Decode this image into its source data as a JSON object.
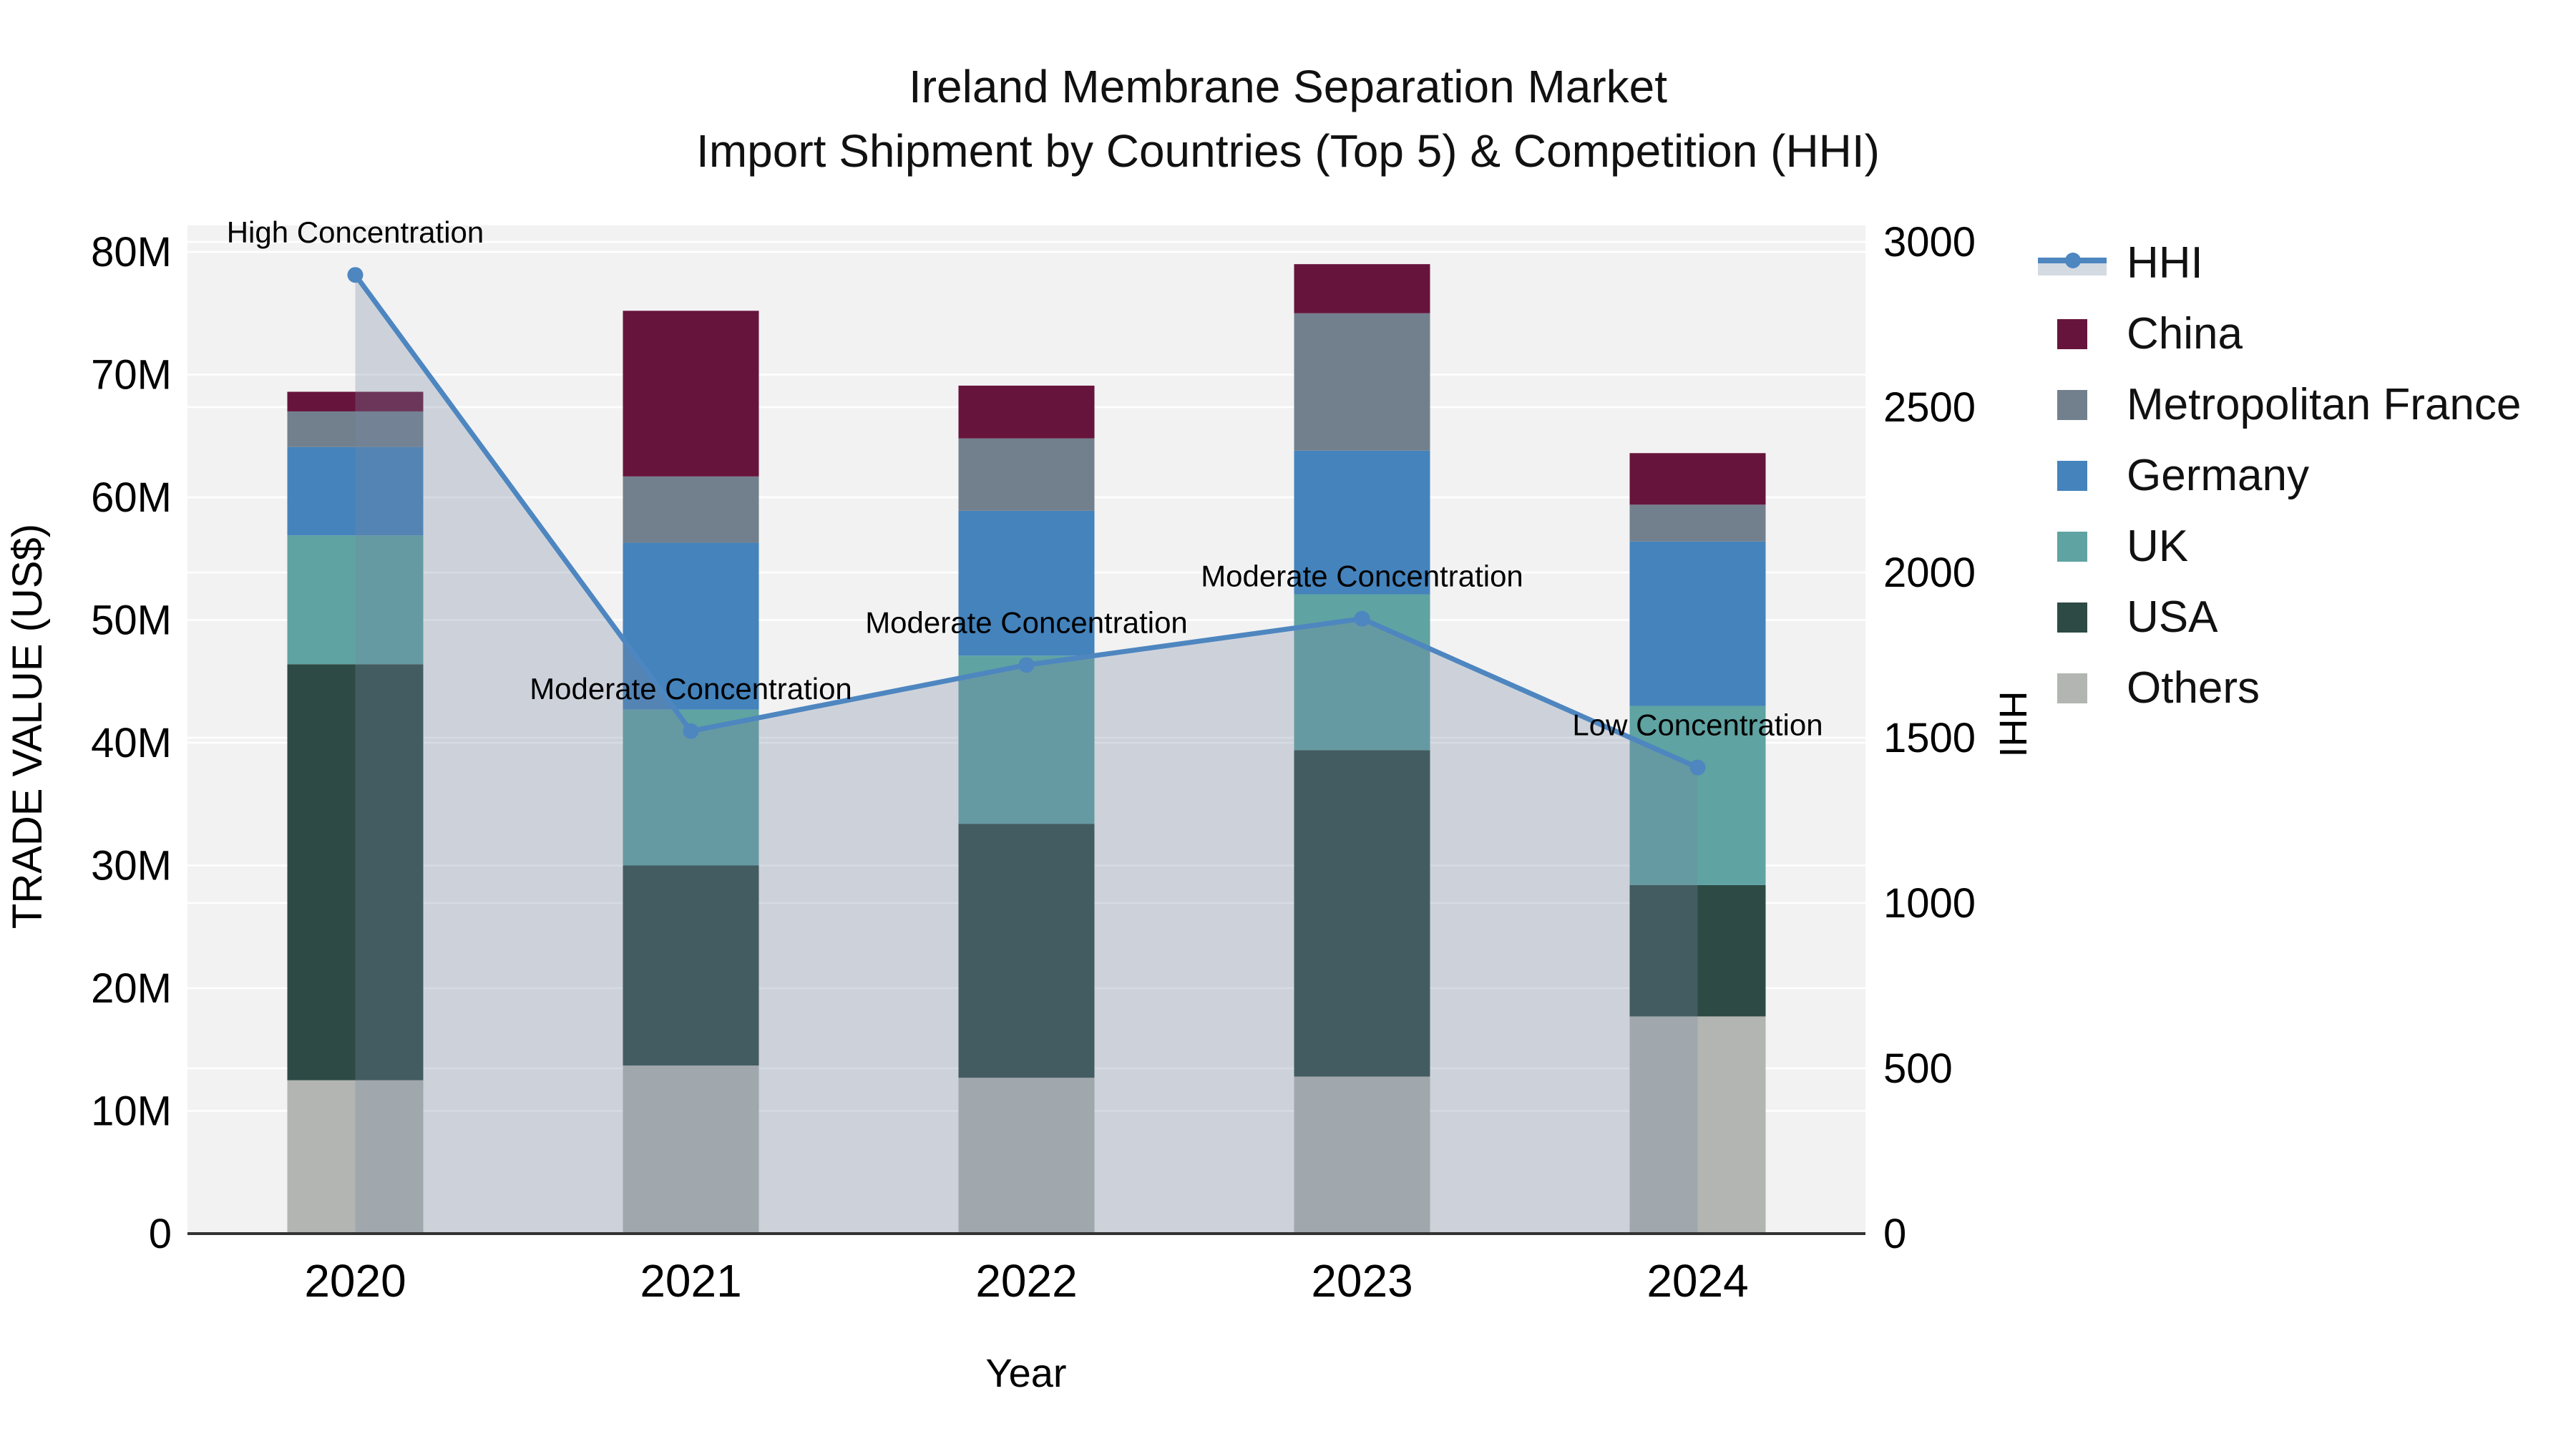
{
  "title": {
    "line1": "Ireland Membrane Separation Market",
    "line2": "Import Shipment by Countries (Top 5) & Competition (HHI)"
  },
  "chart_data": {
    "type": "bar",
    "subtype": "stacked-bar-with-line",
    "title": "Ireland Membrane Separation Market",
    "subtitle": "Import Shipment by Countries (Top 5) & Competition (HHI)",
    "categories": [
      "2020",
      "2021",
      "2022",
      "2023",
      "2024"
    ],
    "units": "Million US$",
    "stack_order_bottom_to_top": [
      "Others",
      "USA",
      "UK",
      "Germany",
      "Metropolitan France",
      "China"
    ],
    "series": [
      {
        "name": "China",
        "color": "#67143c",
        "values": [
          1.6,
          13.5,
          4.3,
          4.0,
          4.2
        ]
      },
      {
        "name": "Metropolitan France",
        "color": "#72808e",
        "values": [
          2.9,
          5.4,
          5.9,
          11.2,
          3.0
        ]
      },
      {
        "name": "Germany",
        "color": "#4483bc",
        "values": [
          7.2,
          13.6,
          11.8,
          11.7,
          13.4
        ]
      },
      {
        "name": "UK",
        "color": "#5fa3a2",
        "values": [
          10.5,
          12.7,
          13.7,
          12.7,
          14.6
        ]
      },
      {
        "name": "USA",
        "color": "#2d4a45",
        "values": [
          33.9,
          16.3,
          20.7,
          26.6,
          10.7
        ]
      },
      {
        "name": "Others",
        "color": "#b2b5b2",
        "values": [
          12.5,
          13.7,
          12.7,
          12.8,
          17.7
        ]
      }
    ],
    "bar_totals": [
      68.6,
      75.2,
      69.1,
      79.0,
      63.6
    ],
    "hhi": {
      "name": "HHI",
      "line_color": "#4e86c0",
      "area_fill_color": "rgba(119,135,162,0.30)",
      "values": [
        2900,
        1520,
        1720,
        1860,
        1410
      ],
      "annotations": [
        "High Concentration",
        "Moderate Concentration",
        "Moderate Concentration",
        "Moderate Concentration",
        "Low Concentration"
      ]
    },
    "left_axis": {
      "label": "TRADE VALUE (US$)",
      "max": 80,
      "tick_step": 10,
      "ticks": [
        "0",
        "10M",
        "20M",
        "30M",
        "40M",
        "50M",
        "60M",
        "70M",
        "80M"
      ]
    },
    "right_axis": {
      "label": "HHI",
      "max": 3000,
      "tick_step": 500,
      "ticks": [
        "0",
        "500",
        "1000",
        "1500",
        "2000",
        "2500",
        "3000"
      ]
    },
    "x_axis": {
      "label": "Year"
    },
    "plot_bg_color": "#f2f2f2",
    "grid_color": "#ffffff",
    "axis_line_color": "#333333",
    "grid_on": true,
    "legend_position": "right"
  },
  "legend": {
    "items": [
      {
        "label": "HHI",
        "type": "line",
        "color": "#4e86c0"
      },
      {
        "label": "China",
        "type": "square",
        "color": "#67143c"
      },
      {
        "label": "Metropolitan France",
        "type": "square",
        "color": "#72808e"
      },
      {
        "label": "Germany",
        "type": "square",
        "color": "#4483bc"
      },
      {
        "label": "UK",
        "type": "square",
        "color": "#5fa3a2"
      },
      {
        "label": "USA",
        "type": "square",
        "color": "#2d4a45"
      },
      {
        "label": "Others",
        "type": "square",
        "color": "#b2b5b2"
      }
    ]
  }
}
